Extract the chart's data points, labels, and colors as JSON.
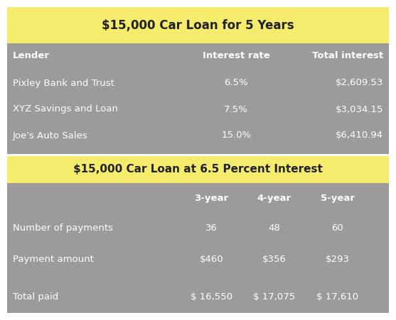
{
  "title1": "$15,000 Car Loan for 5 Years",
  "title2": "$15,000 Car Loan at 6.5 Percent Interest",
  "table1_headers": [
    "Lender",
    "Interest rate",
    "Total interest"
  ],
  "table1_rows": [
    [
      "Pixley Bank and Trust",
      "6.5%",
      "$2,609.53"
    ],
    [
      "XYZ Savings and Loan",
      "7.5%",
      "$3,034.15"
    ],
    [
      "Joe's Auto Sales",
      "15.0%",
      "$6,410.94"
    ]
  ],
  "table2_headers": [
    "",
    "3-year",
    "4-year",
    "5-year"
  ],
  "table2_rows": [
    [
      "Number of payments",
      "36",
      "48",
      "60"
    ],
    [
      "Payment amount",
      "$460",
      "$356",
      "$293"
    ],
    [
      "Total paid",
      "$ 16,550",
      "$ 17,075",
      "$ 17,610"
    ]
  ],
  "bg_color": "#9B9B9B",
  "header_bg_color": "#F5EC6E",
  "text_color_white": "#FFFFFF",
  "text_color_dark": "#222222",
  "fig_bg": "#FFFFFF"
}
